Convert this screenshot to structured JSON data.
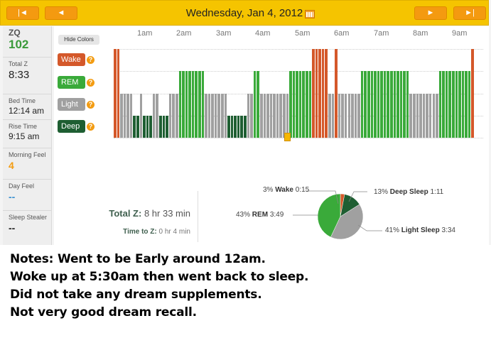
{
  "header": {
    "date_title": "Wednesday, Jan 4, 2012",
    "first_label": "|◄",
    "prev_label": "◄",
    "next_label": "►",
    "last_label": "►|",
    "calendar_icon": "calendar-icon"
  },
  "sidebar": {
    "zq_label": "ZQ",
    "zq_value": "102",
    "total_label": "Total Z",
    "total_value": "8:33",
    "bedtime_label": "Bed Time",
    "bedtime_value": "12:14 am",
    "risetime_label": "Rise Time",
    "risetime_value": "9:15 am",
    "morning_label": "Morning Feel",
    "morning_value": "4",
    "day_label": "Day Feel",
    "day_value": "--",
    "stealer_label": "Sleep Stealer",
    "stealer_value": "--"
  },
  "graph": {
    "hide_colors_label": "Hide Colors",
    "hours": [
      "1am",
      "2am",
      "3am",
      "4am",
      "5am",
      "6am",
      "7am",
      "8am",
      "9am"
    ],
    "legend": [
      {
        "label": "Wake",
        "color": "#d4582a"
      },
      {
        "label": "REM",
        "color": "#3aaa3a"
      },
      {
        "label": "Light",
        "color": "#a0a0a0"
      },
      {
        "label": "Deep",
        "color": "#1e5e32"
      }
    ],
    "help_glyph": "?",
    "stage_sequence": [
      "wake",
      "wake",
      "light",
      "light",
      "light",
      "light",
      "deep",
      "deep",
      "light",
      "deep",
      "deep",
      "deep",
      "light",
      "light",
      "deep",
      "deep",
      "deep",
      "light",
      "light",
      "light",
      "rem",
      "rem",
      "rem",
      "rem",
      "rem",
      "rem",
      "rem",
      "rem",
      "light",
      "light",
      "light",
      "light",
      "light",
      "light",
      "light",
      "deep",
      "deep",
      "deep",
      "deep",
      "deep",
      "deep",
      "light",
      "light",
      "rem",
      "rem",
      "light",
      "light",
      "light",
      "light",
      "light",
      "light",
      "light",
      "light",
      "light",
      "rem",
      "rem",
      "rem",
      "rem",
      "rem",
      "rem",
      "rem",
      "wake",
      "wake",
      "wake",
      "wake",
      "wake",
      "light",
      "light",
      "wake",
      "light",
      "light",
      "light",
      "light",
      "light",
      "light",
      "light",
      "rem",
      "rem",
      "rem",
      "rem",
      "rem",
      "rem",
      "rem",
      "rem",
      "rem",
      "rem",
      "rem",
      "rem",
      "rem",
      "rem",
      "rem",
      "light",
      "light",
      "light",
      "light",
      "light",
      "light",
      "light",
      "light",
      "light",
      "rem",
      "rem",
      "rem",
      "rem",
      "rem",
      "rem",
      "rem",
      "rem",
      "rem",
      "rem",
      "wake"
    ]
  },
  "stats": {
    "total_label": "Total Z:",
    "total_value": "8 hr 33 min",
    "timetoz_label": "Time to Z:",
    "timetoz_value": "0 hr 4 min"
  },
  "pie": {
    "slices": [
      {
        "name": "Wake",
        "percent": "3%",
        "duration": "0:15",
        "value": 3,
        "color": "#d4582a"
      },
      {
        "name": "Deep Sleep",
        "percent": "13%",
        "duration": "1:11",
        "value": 13,
        "color": "#1e5e32"
      },
      {
        "name": "Light Sleep",
        "percent": "41%",
        "duration": "3:34",
        "value": 41,
        "color": "#a0a0a0"
      },
      {
        "name": "REM",
        "percent": "43%",
        "duration": "3:49",
        "value": 43,
        "color": "#3aaa3a"
      }
    ]
  },
  "notes": [
    "Notes: Went to be Early around 12am.",
    "Woke up at 5:30am then went back to sleep.",
    "Did not take any dream supplements.",
    "Not very good dream recall."
  ]
}
